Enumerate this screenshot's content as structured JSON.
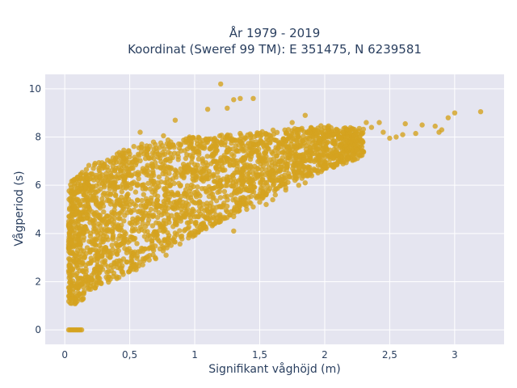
{
  "chart_data": {
    "type": "scatter",
    "title_line1": "År 1979 - 2019",
    "title_line2": "Koordinat (Sweref 99 TM): E 351475, N 6239581",
    "xlabel": "Signifikant våghöjd (m)",
    "ylabel": "Vågperiod (s)",
    "xlim": [
      -0.15,
      3.38
    ],
    "ylim": [
      -0.6,
      10.6
    ],
    "grid": true,
    "x_ticks": [
      0,
      0.5,
      1,
      1.5,
      2,
      2.5,
      3
    ],
    "x_tick_labels": [
      "0",
      "0,5",
      "1",
      "1,5",
      "2",
      "2,5",
      "3"
    ],
    "y_ticks": [
      0,
      2,
      4,
      6,
      8,
      10
    ],
    "y_tick_labels": [
      "0",
      "2",
      "4",
      "6",
      "8",
      "10"
    ],
    "colors": {
      "marker": "#d4a31f",
      "plot_bg": "#e5e5f0",
      "grid": "#ffffff",
      "text": "#2a3f5f"
    },
    "envelope": {
      "description_points_lower_hs_to_upper_tp": [
        [
          0.03,
          1.1,
          6.0
        ],
        [
          0.1,
          1.05,
          6.5
        ],
        [
          0.2,
          1.6,
          6.9
        ],
        [
          0.3,
          1.9,
          7.0
        ],
        [
          0.4,
          2.1,
          7.3
        ],
        [
          0.5,
          2.4,
          7.7
        ],
        [
          0.6,
          2.7,
          7.8
        ],
        [
          0.7,
          3.0,
          7.8
        ],
        [
          0.8,
          3.3,
          7.9
        ],
        [
          0.9,
          3.6,
          7.9
        ],
        [
          1.0,
          3.9,
          8.0
        ],
        [
          1.1,
          4.2,
          8.0
        ],
        [
          1.2,
          4.5,
          8.1
        ],
        [
          1.3,
          4.8,
          8.1
        ],
        [
          1.4,
          5.1,
          8.2
        ],
        [
          1.5,
          5.4,
          8.2
        ],
        [
          1.6,
          5.7,
          8.3
        ],
        [
          1.7,
          6.0,
          8.3
        ],
        [
          1.8,
          6.2,
          8.4
        ],
        [
          1.9,
          6.4,
          8.4
        ],
        [
          2.0,
          6.6,
          8.5
        ],
        [
          2.1,
          6.8,
          8.4
        ],
        [
          2.2,
          7.0,
          8.4
        ],
        [
          2.3,
          7.2,
          8.4
        ]
      ]
    },
    "outliers": [
      [
        1.2,
        10.2
      ],
      [
        1.35,
        9.6
      ],
      [
        1.45,
        9.6
      ],
      [
        1.3,
        9.55
      ],
      [
        1.1,
        9.15
      ],
      [
        0.85,
        8.7
      ],
      [
        1.25,
        9.2
      ],
      [
        1.85,
        8.9
      ],
      [
        1.75,
        8.6
      ],
      [
        3.2,
        9.05
      ],
      [
        3.0,
        9.0
      ],
      [
        2.95,
        8.8
      ],
      [
        2.85,
        8.45
      ],
      [
        2.75,
        8.5
      ],
      [
        2.62,
        8.55
      ],
      [
        2.7,
        8.15
      ],
      [
        2.9,
        8.3
      ],
      [
        2.88,
        8.2
      ],
      [
        2.6,
        8.1
      ],
      [
        2.55,
        8.0
      ],
      [
        2.5,
        7.95
      ],
      [
        2.45,
        8.2
      ],
      [
        2.42,
        8.6
      ],
      [
        2.36,
        8.4
      ],
      [
        2.32,
        8.6
      ],
      [
        0.58,
        8.2
      ],
      [
        0.76,
        8.05
      ],
      [
        0.96,
        8.0
      ],
      [
        0.5,
        7.3
      ],
      [
        0.45,
        7.1
      ],
      [
        0.35,
        7.0
      ],
      [
        0.3,
        6.8
      ],
      [
        0.27,
        6.5
      ],
      [
        0.17,
        6.3
      ],
      [
        0.05,
        5.9
      ],
      [
        0.07,
        5.65
      ],
      [
        0.15,
        1.6
      ],
      [
        0.2,
        1.8
      ],
      [
        0.35,
        2.1
      ],
      [
        0.45,
        2.3
      ],
      [
        0.55,
        2.5
      ],
      [
        0.65,
        2.9
      ],
      [
        0.8,
        3.6
      ],
      [
        0.85,
        4.4
      ],
      [
        1.3,
        4.1
      ],
      [
        1.3,
        4.7
      ],
      [
        1.45,
        5.1
      ],
      [
        1.55,
        5.2
      ],
      [
        1.7,
        5.9
      ],
      [
        1.85,
        6.1
      ],
      [
        1.9,
        6.4
      ],
      [
        1.9,
        6.6
      ],
      [
        2.0,
        6.8
      ],
      [
        2.1,
        7.1
      ],
      [
        1.8,
        6.0
      ],
      [
        1.7,
        5.8
      ],
      [
        1.62,
        5.6
      ],
      [
        1.6,
        5.4
      ],
      [
        1.5,
        5.3
      ],
      [
        1.4,
        5.0
      ],
      [
        1.25,
        4.9
      ],
      [
        1.15,
        4.4
      ],
      [
        1.0,
        4.1
      ],
      [
        0.9,
        3.9
      ],
      [
        0.78,
        3.1
      ],
      [
        0.7,
        2.95
      ],
      [
        0.6,
        2.7
      ],
      [
        0.5,
        2.45
      ],
      [
        0.4,
        2.2
      ],
      [
        0.28,
        1.95
      ],
      [
        0.22,
        1.85
      ],
      [
        0.12,
        1.4
      ],
      [
        0.08,
        1.25
      ],
      [
        0.06,
        1.3
      ]
    ],
    "zero_period_points": [
      [
        0.03,
        0.0
      ],
      [
        0.04,
        0.0
      ],
      [
        0.05,
        0.0
      ],
      [
        0.06,
        0.0
      ],
      [
        0.07,
        0.0
      ],
      [
        0.08,
        0.0
      ],
      [
        0.09,
        0.0
      ],
      [
        0.1,
        0.0
      ],
      [
        0.11,
        0.0
      ],
      [
        0.12,
        0.0
      ],
      [
        0.13,
        0.0
      ]
    ]
  }
}
